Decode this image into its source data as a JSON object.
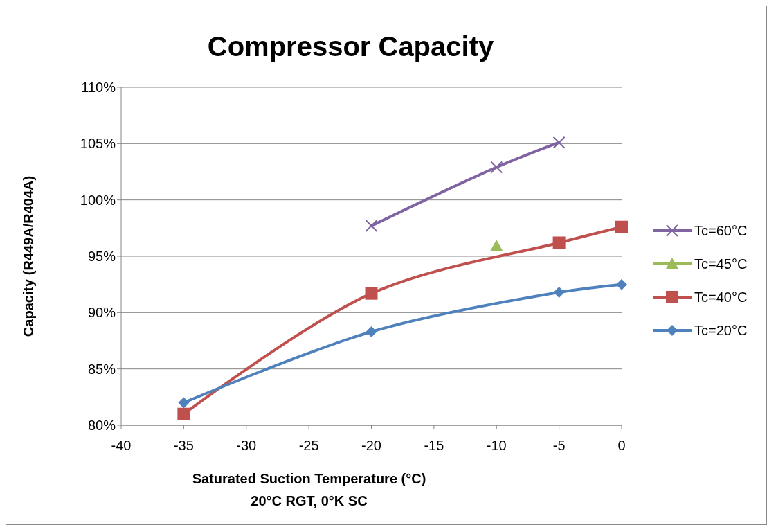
{
  "chart_data": {
    "type": "line",
    "title": "Compressor Capacity",
    "xlabel": "Saturated Suction Temperature (°C)",
    "ylabel": "Capacity (R449A/R404A)",
    "annotations": [
      "20°C RGT, 0°K SC"
    ],
    "xlim": [
      -40,
      0
    ],
    "xticks": [
      -40,
      -35,
      -30,
      -25,
      -20,
      -15,
      -10,
      -5,
      0
    ],
    "ylim": [
      80,
      110
    ],
    "yticks": [
      {
        "value": 80,
        "label": "80%"
      },
      {
        "value": 85,
        "label": "85%"
      },
      {
        "value": 90,
        "label": "90%"
      },
      {
        "value": 95,
        "label": "95%"
      },
      {
        "value": 100,
        "label": "100%"
      },
      {
        "value": 105,
        "label": "105%"
      },
      {
        "value": 110,
        "label": "110%"
      }
    ],
    "grid": "y",
    "legend": "right",
    "line_style": "solid",
    "series": [
      {
        "name": "Tc=60°C",
        "color": "#8064a2",
        "marker": "cross",
        "x": [
          -20,
          -10,
          -5
        ],
        "values": [
          97.7,
          102.9,
          105.1
        ]
      },
      {
        "name": "Tc=45°C",
        "color": "#9bbb59",
        "marker": "triangle",
        "x": [
          -10
        ],
        "values": [
          95.9
        ]
      },
      {
        "name": "Tc=40°C",
        "color": "#c0504d",
        "marker": "square",
        "x": [
          -35,
          -20,
          -5,
          0
        ],
        "values": [
          81.0,
          91.7,
          96.2,
          97.6
        ]
      },
      {
        "name": "Tc=20°C",
        "color": "#4f81bd",
        "marker": "diamond",
        "x": [
          -35,
          -20,
          -5,
          0
        ],
        "values": [
          82.0,
          88.3,
          91.8,
          92.5
        ]
      }
    ]
  }
}
